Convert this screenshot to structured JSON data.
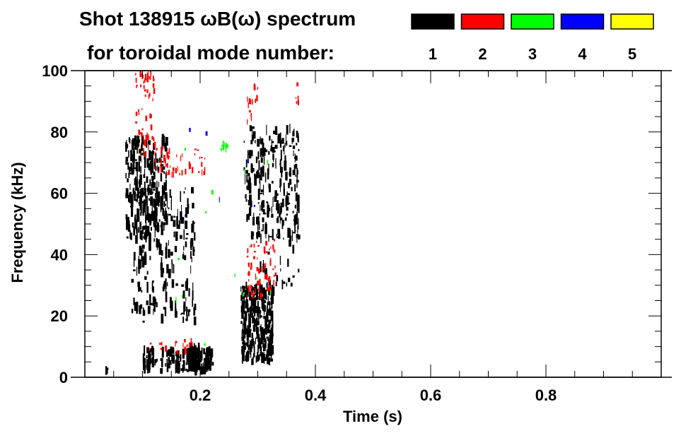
{
  "chart_data": {
    "type": "heatmap",
    "title": "Shot 138915 ωB(ω) spectrum",
    "subtitle": "for toroidal mode number:",
    "xlabel": "Time (s)",
    "ylabel": "Frequency (kHz)",
    "xlim": [
      0,
      1.0
    ],
    "ylim": [
      0,
      100
    ],
    "x_ticks": [
      0.2,
      0.4,
      0.6,
      0.8
    ],
    "x_tick_labels": [
      "0.2",
      "0.4",
      "0.6",
      "0.8"
    ],
    "y_ticks": [
      0,
      20,
      40,
      60,
      80,
      100
    ],
    "y_tick_labels": [
      "0",
      "20",
      "40",
      "60",
      "80",
      "100"
    ],
    "legend": {
      "placement": "top-right",
      "entries": [
        {
          "label": "1",
          "color": "#000000"
        },
        {
          "label": "2",
          "color": "#ff0000"
        },
        {
          "label": "3",
          "color": "#00ff00"
        },
        {
          "label": "4",
          "color": "#0000ff"
        },
        {
          "label": "5",
          "color": "#ffff00"
        }
      ]
    },
    "regions": [
      {
        "mode": 1,
        "t": [
          0.07,
          0.14
        ],
        "f": [
          45,
          78
        ],
        "count": 260
      },
      {
        "mode": 1,
        "t": [
          0.08,
          0.19
        ],
        "f": [
          18,
          62
        ],
        "count": 220
      },
      {
        "mode": 1,
        "t": [
          0.1,
          0.22
        ],
        "f": [
          2,
          9
        ],
        "count": 120
      },
      {
        "mode": 1,
        "t": [
          0.175,
          0.22
        ],
        "f": [
          3,
          10
        ],
        "count": 80
      },
      {
        "mode": 1,
        "t": [
          0.27,
          0.325
        ],
        "f": [
          5,
          30
        ],
        "count": 320
      },
      {
        "mode": 1,
        "t": [
          0.275,
          0.37
        ],
        "f": [
          45,
          82
        ],
        "count": 200
      },
      {
        "mode": 1,
        "t": [
          0.3,
          0.37
        ],
        "f": [
          30,
          75
        ],
        "count": 60
      },
      {
        "mode": 1,
        "t": [
          0.035,
          0.042
        ],
        "f": [
          2,
          3
        ],
        "count": 4
      },
      {
        "mode": 2,
        "t": [
          0.085,
          0.12
        ],
        "f": [
          72,
          100
        ],
        "count": 60
      },
      {
        "mode": 2,
        "t": [
          0.12,
          0.21
        ],
        "f": [
          66,
          75
        ],
        "count": 50
      },
      {
        "mode": 2,
        "t": [
          0.28,
          0.33
        ],
        "f": [
          26,
          45
        ],
        "count": 60
      },
      {
        "mode": 2,
        "t": [
          0.28,
          0.3
        ],
        "f": [
          82,
          96
        ],
        "count": 14
      },
      {
        "mode": 2,
        "t": [
          0.1,
          0.2
        ],
        "f": [
          8,
          12
        ],
        "count": 20
      },
      {
        "mode": 2,
        "t": [
          0.365,
          0.372
        ],
        "f": [
          88,
          98
        ],
        "count": 5
      },
      {
        "mode": 3,
        "t": [
          0.235,
          0.248
        ],
        "f": [
          74,
          78
        ],
        "count": 14
      },
      {
        "mode": 3,
        "t": [
          0.15,
          0.35
        ],
        "f": [
          10,
          80
        ],
        "count": 14
      },
      {
        "mode": 4,
        "t": [
          0.14,
          0.33
        ],
        "f": [
          40,
          85
        ],
        "count": 6
      }
    ]
  }
}
